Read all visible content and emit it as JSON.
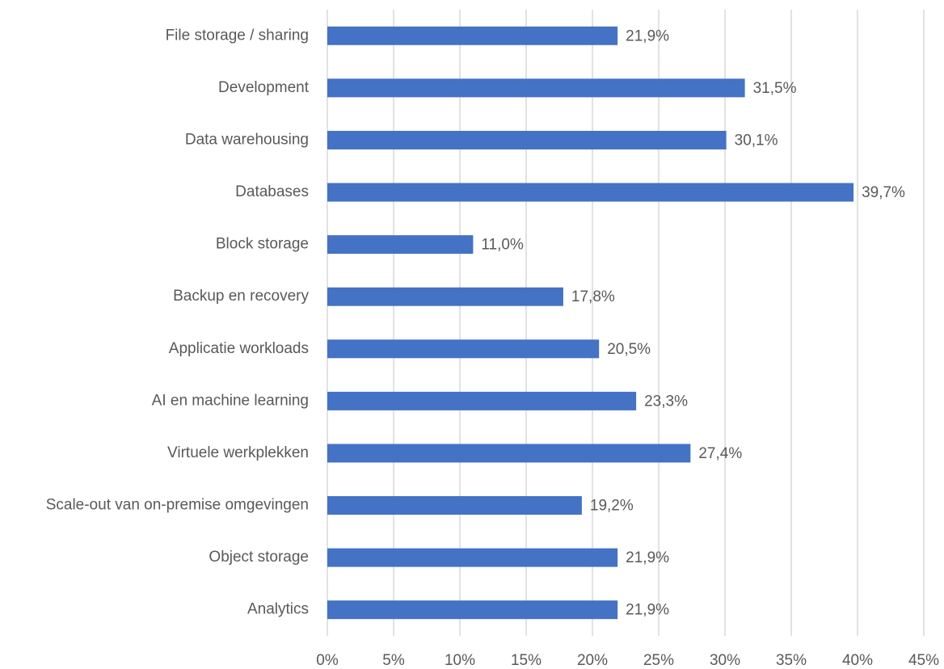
{
  "chart_data": {
    "type": "bar",
    "orientation": "horizontal",
    "categories": [
      "File storage / sharing",
      "Development",
      "Data warehousing",
      "Databases",
      "Block storage",
      "Backup en recovery",
      "Applicatie workloads",
      "AI en machine learning",
      "Virtuele werkplekken",
      "Scale-out van on-premise omgevingen",
      "Object storage",
      "Analytics"
    ],
    "values": [
      21.9,
      31.5,
      30.1,
      39.7,
      11.0,
      17.8,
      20.5,
      23.3,
      27.4,
      19.2,
      21.9,
      21.9
    ],
    "value_labels": [
      "21,9%",
      "31,5%",
      "30,1%",
      "39,7%",
      "11,0%",
      "17,8%",
      "20,5%",
      "23,3%",
      "27,4%",
      "19,2%",
      "21,9%",
      "21,9%"
    ],
    "color": "#4472c4",
    "xlim": [
      0,
      45
    ],
    "xticks": [
      {
        "value": 0,
        "label": "0%"
      },
      {
        "value": 5,
        "label": "5%"
      },
      {
        "value": 10,
        "label": "10%"
      },
      {
        "value": 15,
        "label": "15%"
      },
      {
        "value": 20,
        "label": "20%"
      },
      {
        "value": 25,
        "label": "25%"
      },
      {
        "value": 30,
        "label": "30%"
      },
      {
        "value": 35,
        "label": "35%"
      },
      {
        "value": 40,
        "label": "40%"
      },
      {
        "value": 45,
        "label": "45%"
      }
    ],
    "grid": true
  }
}
